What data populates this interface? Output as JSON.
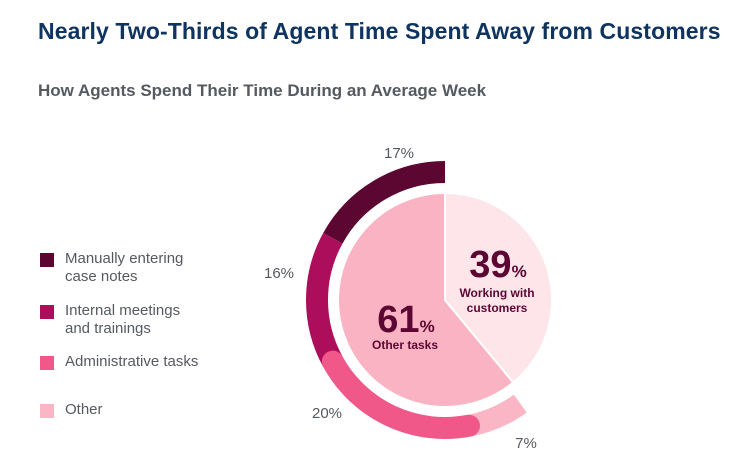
{
  "title": "Nearly Two-Thirds of Agent Time Spent Away from Customers",
  "subtitle": "How Agents Spend Their Time During an Average Week",
  "colors": {
    "manual": "#5c0632",
    "meetings": "#ad0e5b",
    "admin": "#f0588a",
    "other": "#fbb6c6",
    "inner_other": "#f9b3c3",
    "inner_customers": "#fde5ea",
    "text_dark": "#5c0632",
    "text_gray": "#555a60",
    "title": "#0f3460"
  },
  "chart_data": {
    "type": "pie",
    "inner": [
      {
        "label": "Other tasks",
        "value": 61,
        "display_number": "61",
        "display_unit": "%"
      },
      {
        "label": "Working with customers",
        "label_lines": [
          "Working with",
          "customers"
        ],
        "value": 39,
        "display_number": "39",
        "display_unit": "%"
      }
    ],
    "outer": [
      {
        "label": "Manually entering case notes",
        "legend": "Manually entering\ncase notes",
        "value": 17,
        "display": "17%"
      },
      {
        "label": "Internal meetings and trainings",
        "legend": "Internal meetings\nand trainings",
        "value": 16,
        "display": "16%"
      },
      {
        "label": "Administrative tasks",
        "legend": "Administrative tasks",
        "value": 20,
        "display": "20%"
      },
      {
        "label": "Other",
        "legend": "Other",
        "value": 7,
        "display": "7%"
      }
    ],
    "legend_position": "left"
  }
}
